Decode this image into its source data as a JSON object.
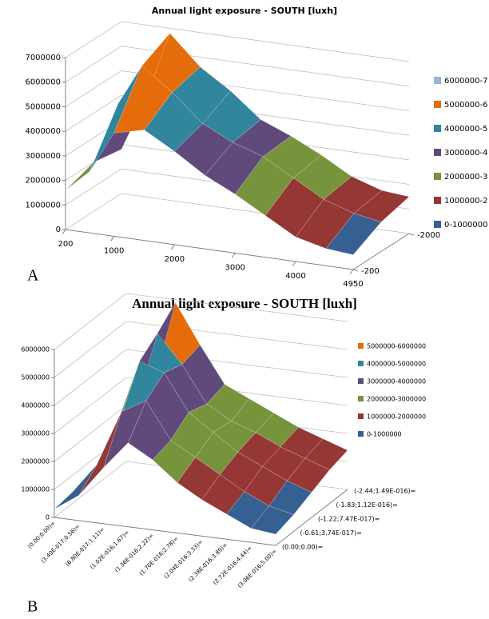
{
  "chart_data": [
    {
      "type": "surface",
      "panel_label": "A",
      "title": "Annual light exposure - SOUTH [luxh]",
      "x": [
        200,
        600,
        1000,
        1500,
        2000,
        2500,
        3000,
        3500,
        4000,
        4500,
        4950
      ],
      "depth": [
        -200,
        -1100,
        -2000
      ],
      "values": [
        [
          1600000,
          2500000,
          4200000,
          4500000,
          3800000,
          3000000,
          2400000,
          1700000,
          1000000,
          700000,
          600000
        ],
        [
          2000000,
          4500000,
          6200000,
          5300000,
          4200000,
          3600000,
          3200000,
          2500000,
          1800000,
          1400000,
          1200000
        ],
        [
          1800000,
          4000000,
          6800000,
          5600000,
          4800000,
          3800000,
          3300000,
          2700000,
          2000000,
          1600000,
          1500000
        ]
      ],
      "series": [
        {
          "name": "6000000-7",
          "color": "#95b3d7",
          "from": 6000000,
          "to": 7000000
        },
        {
          "name": "5000000-6",
          "color": "#e46c0a",
          "from": 5000000,
          "to": 6000000
        },
        {
          "name": "4000000-5",
          "color": "#31859c",
          "from": 4000000,
          "to": 5000000
        },
        {
          "name": "3000000-4",
          "color": "#604a7b",
          "from": 3000000,
          "to": 4000000
        },
        {
          "name": "2000000-3",
          "color": "#77933c",
          "from": 2000000,
          "to": 3000000
        },
        {
          "name": "1000000-2",
          "color": "#953735",
          "from": 1000000,
          "to": 2000000
        },
        {
          "name": "0-1000000",
          "color": "#376092",
          "from": 0,
          "to": 1000000
        }
      ],
      "ylim": [
        0,
        7000000
      ],
      "yticks": [
        0,
        1000000,
        2000000,
        3000000,
        4000000,
        5000000,
        6000000,
        7000000
      ],
      "xlim": [
        200,
        4950
      ],
      "xticks": [
        200,
        1000,
        2000,
        3000,
        4000,
        4950
      ],
      "depth_lim": [
        -200,
        -2000
      ],
      "depth_ticks": [
        -200,
        -2000
      ],
      "grid": true
    },
    {
      "type": "surface",
      "panel_label": "B",
      "title": "Annual light exposure - SOUTH [luxh]",
      "categories": [
        "(0.00;0.00)=",
        "(3.40E-017;0.56)=",
        "(6.80E-017;1.11)=",
        "(1.02E-016;1.67)=",
        "(1.36E-016;2.22)=",
        "(1.70E-016;2.78)=",
        "(2.04E-016;3.33)=",
        "(2.38E-016;3.89)=",
        "(2.72E-016;4.44)=",
        "(3.06E-016;5.00)="
      ],
      "depth_categories": [
        "(0.00;0.00)=",
        "(-0.61;3.74E-017)=",
        "(-1.22;7.47E-017)=",
        "(-1.83;1.12E-016)=",
        "(-2.44;1.49E-016)="
      ],
      "values": [
        [
          300000,
          900000,
          2000000,
          3000000,
          2500000,
          1800000,
          1300000,
          900000,
          500000,
          400000
        ],
        [
          400000,
          1500000,
          3500000,
          4000000,
          2700000,
          2200000,
          1700000,
          1200000,
          800000,
          600000
        ],
        [
          500000,
          2000000,
          4800000,
          4500000,
          3200000,
          2600000,
          2000000,
          1600000,
          1200000,
          900000
        ],
        [
          600000,
          2200000,
          5300000,
          4300000,
          3000000,
          2500000,
          2200000,
          1800000,
          1500000,
          1200000
        ],
        [
          700000,
          2500000,
          5900000,
          4500000,
          3200000,
          2800000,
          2400000,
          2000000,
          1700000,
          1400000
        ]
      ],
      "series": [
        {
          "name": "5000000-6000000",
          "color": "#e46c0a",
          "from": 5000000,
          "to": 6000000
        },
        {
          "name": "4000000-5000000",
          "color": "#31859c",
          "from": 4000000,
          "to": 5000000
        },
        {
          "name": "3000000-4000000",
          "color": "#604a7b",
          "from": 3000000,
          "to": 4000000
        },
        {
          "name": "2000000-3000000",
          "color": "#77933c",
          "from": 2000000,
          "to": 3000000
        },
        {
          "name": "1000000-2000000",
          "color": "#953735",
          "from": 1000000,
          "to": 2000000
        },
        {
          "name": "0-1000000",
          "color": "#376092",
          "from": 0,
          "to": 1000000
        }
      ],
      "ylim": [
        0,
        6000000
      ],
      "yticks": [
        0,
        1000000,
        2000000,
        3000000,
        4000000,
        5000000,
        6000000
      ],
      "grid": true
    }
  ]
}
